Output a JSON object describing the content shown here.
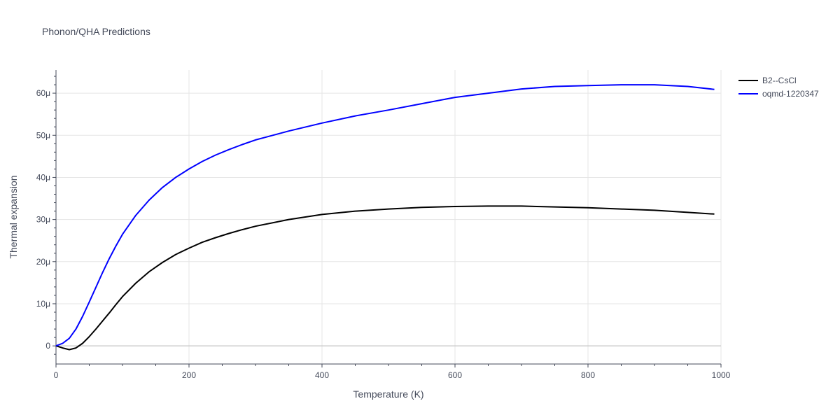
{
  "chart_data": {
    "type": "line",
    "title": "Phonon/QHA Predictions",
    "xlabel": "Temperature (K)",
    "ylabel": "Thermal expansion",
    "xlim": [
      0,
      1000
    ],
    "ylim": [
      -4.3,
      65.5
    ],
    "y_unit_suffix": "μ",
    "xticks": [
      0,
      200,
      400,
      600,
      800,
      1000
    ],
    "yticks": [
      0,
      10,
      20,
      30,
      40,
      50,
      60
    ],
    "grid": true,
    "legend_position": "top-right",
    "series": [
      {
        "name": "B2--CsCl",
        "color": "#000000",
        "x": [
          0,
          10,
          20,
          30,
          40,
          50,
          60,
          70,
          80,
          90,
          100,
          120,
          140,
          160,
          180,
          200,
          220,
          240,
          260,
          280,
          300,
          350,
          400,
          450,
          500,
          550,
          600,
          650,
          700,
          750,
          800,
          850,
          900,
          950,
          990
        ],
        "y": [
          0,
          -0.5,
          -0.9,
          -0.5,
          0.6,
          2.2,
          4.0,
          5.9,
          7.8,
          9.8,
          11.7,
          14.9,
          17.6,
          19.8,
          21.7,
          23.2,
          24.6,
          25.7,
          26.7,
          27.6,
          28.4,
          30.0,
          31.2,
          32.0,
          32.5,
          32.9,
          33.1,
          33.2,
          33.2,
          33.0,
          32.8,
          32.5,
          32.2,
          31.7,
          31.3
        ]
      },
      {
        "name": "oqmd-1220347",
        "color": "#0000ff",
        "x": [
          0,
          10,
          20,
          30,
          40,
          50,
          60,
          70,
          80,
          90,
          100,
          120,
          140,
          160,
          180,
          200,
          220,
          240,
          260,
          280,
          300,
          350,
          400,
          450,
          500,
          550,
          600,
          650,
          700,
          750,
          800,
          850,
          900,
          950,
          990
        ],
        "y": [
          0,
          0.6,
          1.8,
          4.0,
          7.0,
          10.4,
          13.9,
          17.4,
          20.7,
          23.7,
          26.5,
          31.0,
          34.6,
          37.6,
          40.0,
          42.0,
          43.8,
          45.3,
          46.6,
          47.8,
          48.9,
          51.0,
          52.9,
          54.6,
          56.0,
          57.5,
          59.0,
          60.0,
          61.0,
          61.6,
          61.8,
          62.0,
          62.0,
          61.6,
          60.9
        ]
      }
    ]
  }
}
